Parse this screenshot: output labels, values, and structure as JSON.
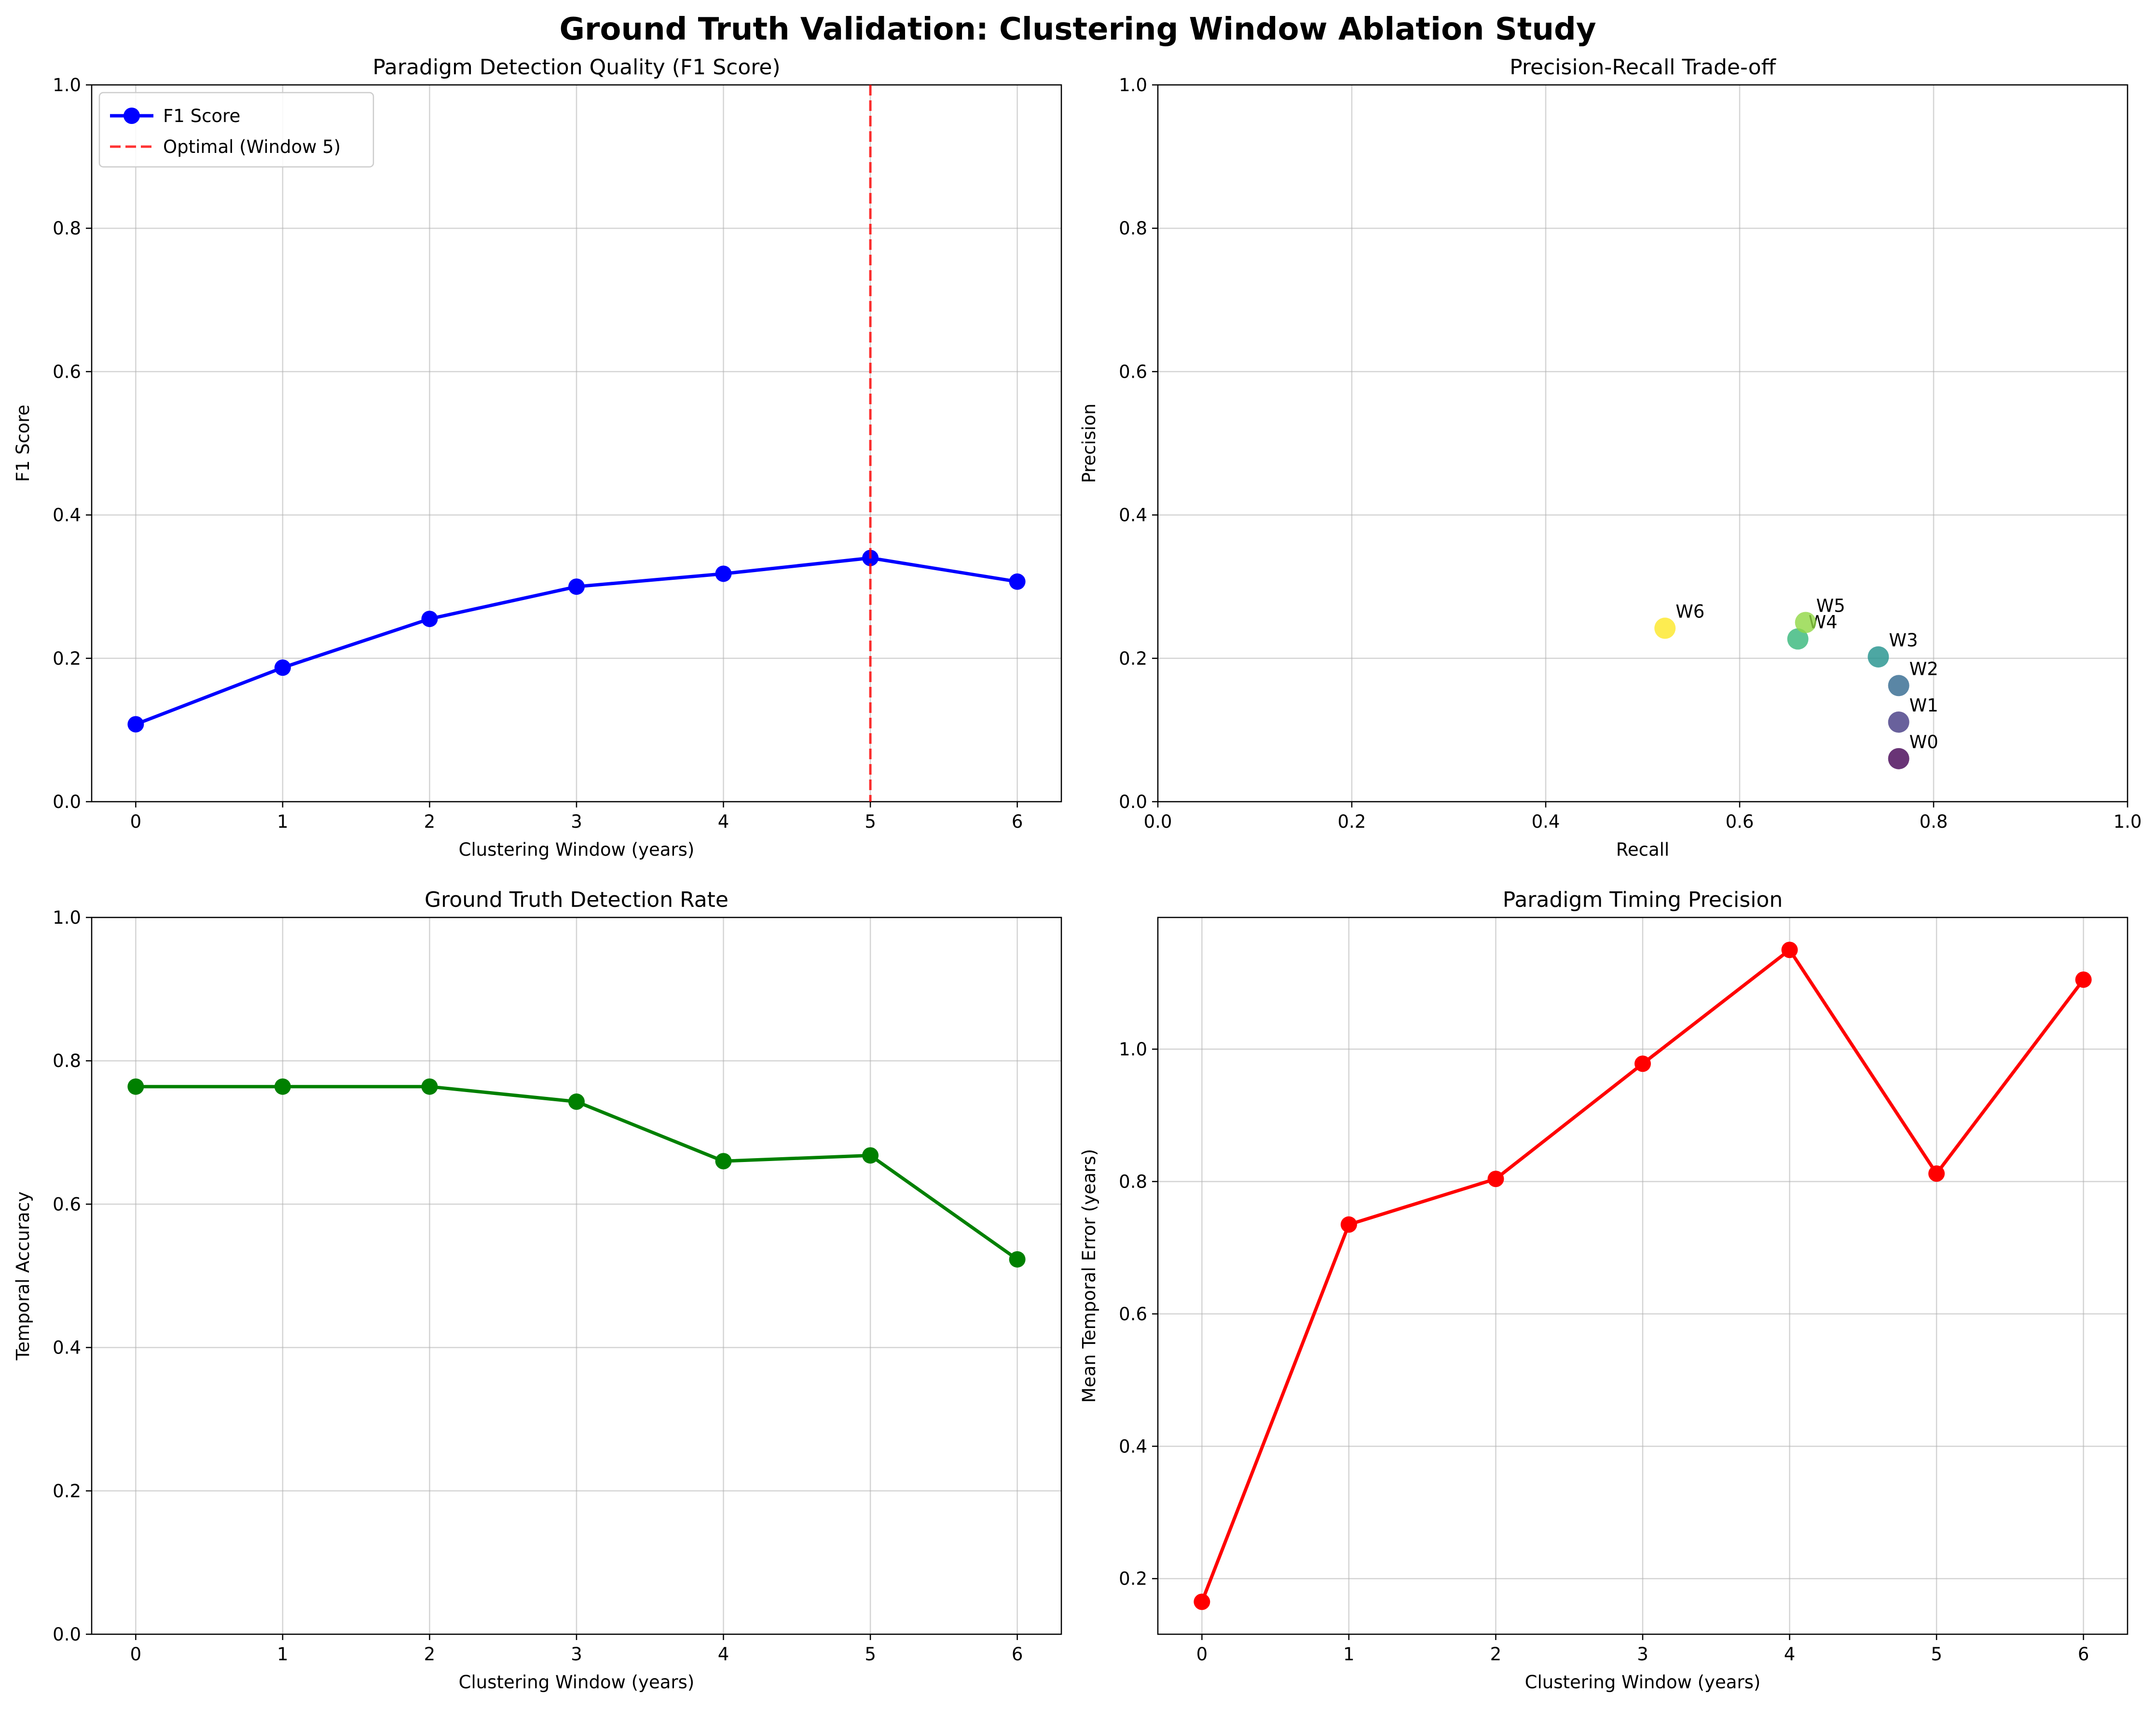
{
  "figure": {
    "suptitle": "Ground Truth Validation: Clustering Window Ablation Study"
  },
  "colors": {
    "f1": "#0000ff",
    "optimal": "#ff0000",
    "detection": "#008000",
    "timing": "#ff0000",
    "grid": "#b0b0b0",
    "viridis": [
      "#440154",
      "#443983",
      "#31688e",
      "#21918c",
      "#35b779",
      "#90d743",
      "#fde725"
    ]
  },
  "chart_data": [
    {
      "id": "f1",
      "type": "line",
      "title": "Paradigm Detection Quality (F1 Score)",
      "xlabel": "Clustering Window (years)",
      "ylabel": "F1 Score",
      "x": [
        0,
        1,
        2,
        3,
        4,
        5,
        6
      ],
      "xlim": [
        -0.3,
        6.3
      ],
      "ylim": [
        0,
        1
      ],
      "xticks": [
        "0",
        "1",
        "2",
        "3",
        "4",
        "5",
        "6"
      ],
      "yticks": [
        "0.0",
        "0.2",
        "0.4",
        "0.6",
        "0.8",
        "1.0"
      ],
      "series": [
        {
          "name": "F1 Score",
          "values": [
            0.108,
            0.187,
            0.255,
            0.3,
            0.318,
            0.34,
            0.307
          ]
        }
      ],
      "vline": {
        "x": 5,
        "label": "Optimal (Window 5)"
      },
      "legend": "upper left",
      "grid": true
    },
    {
      "id": "pr",
      "type": "scatter",
      "title": "Precision-Recall Trade-off",
      "xlabel": "Recall",
      "ylabel": "Precision",
      "xlim": [
        0,
        1
      ],
      "ylim": [
        0,
        1
      ],
      "xticks": [
        "0.0",
        "0.2",
        "0.4",
        "0.6",
        "0.8",
        "1.0"
      ],
      "yticks": [
        "0.0",
        "0.2",
        "0.4",
        "0.6",
        "0.8",
        "1.0"
      ],
      "points": [
        {
          "label": "W0",
          "recall": 0.764,
          "precision": 0.06
        },
        {
          "label": "W1",
          "recall": 0.764,
          "precision": 0.111
        },
        {
          "label": "W2",
          "recall": 0.764,
          "precision": 0.162
        },
        {
          "label": "W3",
          "recall": 0.743,
          "precision": 0.202
        },
        {
          "label": "W4",
          "recall": 0.66,
          "precision": 0.227
        },
        {
          "label": "W5",
          "recall": 0.668,
          "precision": 0.25
        },
        {
          "label": "W6",
          "recall": 0.523,
          "precision": 0.242
        }
      ],
      "grid": true
    },
    {
      "id": "detection",
      "type": "line",
      "title": "Ground Truth Detection Rate",
      "xlabel": "Clustering Window (years)",
      "ylabel": "Temporal Accuracy",
      "x": [
        0,
        1,
        2,
        3,
        4,
        5,
        6
      ],
      "xlim": [
        -0.3,
        6.3
      ],
      "ylim": [
        0,
        1
      ],
      "xticks": [
        "0",
        "1",
        "2",
        "3",
        "4",
        "5",
        "6"
      ],
      "yticks": [
        "0.0",
        "0.2",
        "0.4",
        "0.6",
        "0.8",
        "1.0"
      ],
      "series": [
        {
          "values": [
            0.764,
            0.764,
            0.764,
            0.743,
            0.66,
            0.668,
            0.523
          ]
        }
      ],
      "grid": true
    },
    {
      "id": "timing",
      "type": "line",
      "title": "Paradigm Timing Precision",
      "xlabel": "Clustering Window (years)",
      "ylabel": "Mean Temporal Error (years)",
      "x": [
        0,
        1,
        2,
        3,
        4,
        5,
        6
      ],
      "xlim": [
        -0.3,
        6.3
      ],
      "ylim": [
        0.116,
        1.199
      ],
      "xticks": [
        "0",
        "1",
        "2",
        "3",
        "4",
        "5",
        "6"
      ],
      "yticks": [
        "0.2",
        "0.4",
        "0.6",
        "0.8",
        "1.0"
      ],
      "ytick_values": [
        0.2,
        0.4,
        0.6,
        0.8,
        1.0
      ],
      "series": [
        {
          "values": [
            0.165,
            0.735,
            0.804,
            0.978,
            1.15,
            0.812,
            1.105
          ]
        }
      ],
      "grid": true
    }
  ]
}
